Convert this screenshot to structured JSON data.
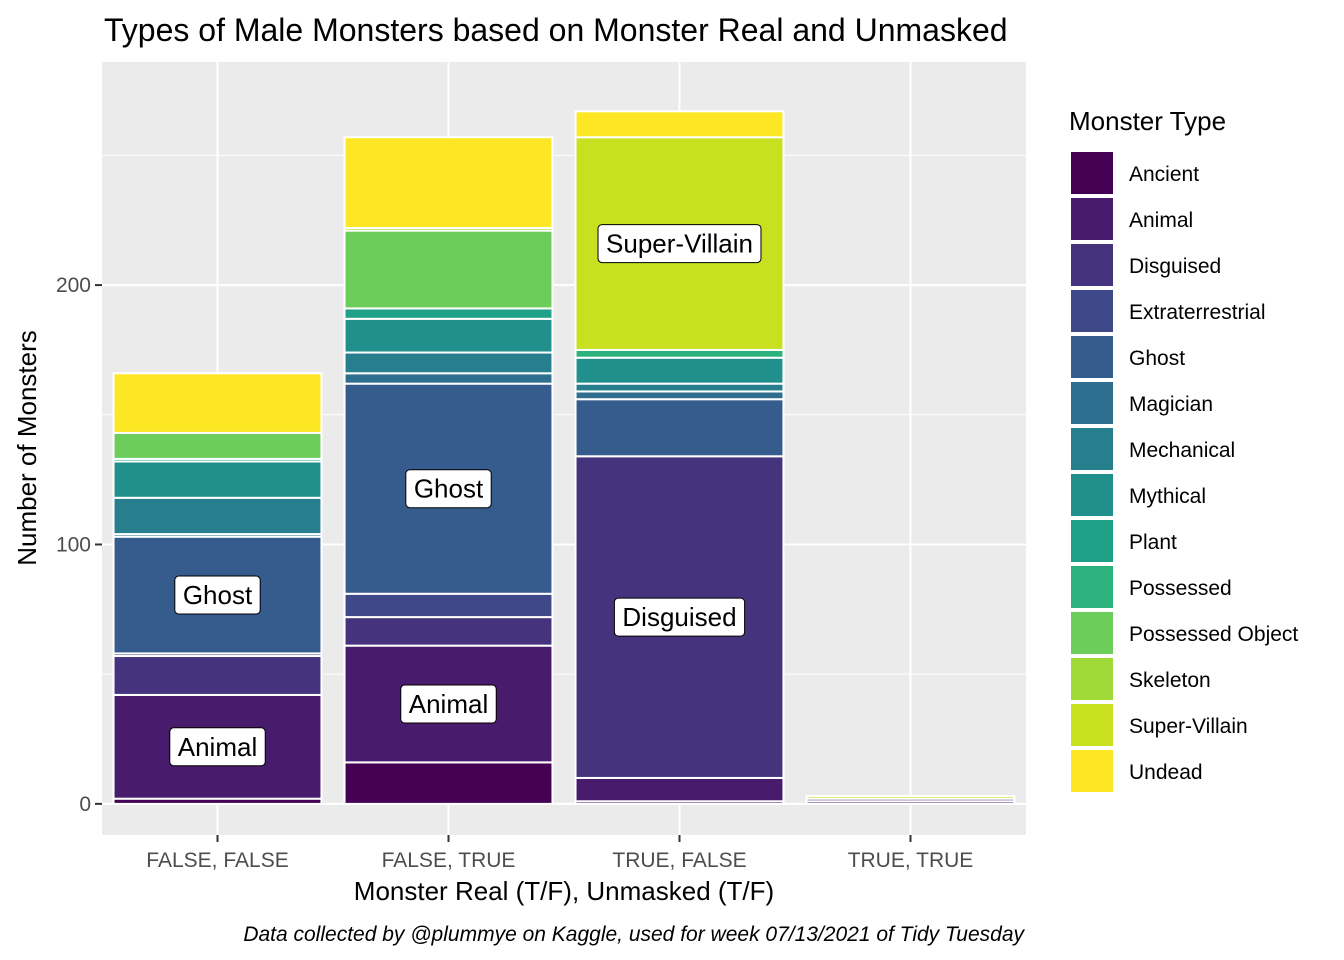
{
  "chart_data": {
    "type": "bar",
    "stacked": true,
    "title": "Types of Male Monsters based on Monster Real and Unmasked",
    "xlabel": "Monster Real (T/F), Unmasked (T/F)",
    "ylabel": "Number of Monsters",
    "caption": "Data collected by @plummye on Kaggle, used for week 07/13/2021 of Tidy Tuesday",
    "legend_title": "Monster Type",
    "legend_position": "right",
    "grid": true,
    "ylim": [
      -12,
      286
    ],
    "yticks": [
      0,
      100,
      200
    ],
    "categories": [
      "FALSE, FALSE",
      "FALSE, TRUE",
      "TRUE, FALSE",
      "TRUE, TRUE"
    ],
    "series": [
      {
        "name": "Ancient",
        "color": "#440154",
        "values": [
          2,
          16,
          1,
          0
        ]
      },
      {
        "name": "Animal",
        "color": "#481B6D",
        "values": [
          40,
          45,
          9,
          1
        ]
      },
      {
        "name": "Disguised",
        "color": "#46337E",
        "values": [
          15,
          11,
          124,
          1
        ]
      },
      {
        "name": "Extraterrestrial",
        "color": "#3F4889",
        "values": [
          1,
          9,
          0,
          0
        ]
      },
      {
        "name": "Ghost",
        "color": "#365C8D",
        "values": [
          45,
          81,
          22,
          0
        ]
      },
      {
        "name": "Magician",
        "color": "#2E6E8E",
        "values": [
          1,
          4,
          3,
          0
        ]
      },
      {
        "name": "Mechanical",
        "color": "#277F8E",
        "values": [
          14,
          8,
          3,
          0
        ]
      },
      {
        "name": "Mythical",
        "color": "#21908C",
        "values": [
          14,
          13,
          10,
          0
        ]
      },
      {
        "name": "Plant",
        "color": "#1FA187",
        "values": [
          1,
          4,
          0,
          0
        ]
      },
      {
        "name": "Possessed",
        "color": "#2DB27D",
        "values": [
          0,
          0,
          3,
          0
        ]
      },
      {
        "name": "Possessed Object",
        "color": "#6CCD5A",
        "values": [
          10,
          30,
          0,
          0
        ]
      },
      {
        "name": "Skeleton",
        "color": "#A0DA39",
        "values": [
          0,
          1,
          0,
          0
        ]
      },
      {
        "name": "Super-Villain",
        "color": "#C8E020",
        "values": [
          0,
          0,
          82,
          1
        ]
      },
      {
        "name": "Undead",
        "color": "#FDE725",
        "values": [
          23,
          35,
          10,
          0
        ]
      }
    ],
    "annotations": [
      {
        "category": "FALSE, FALSE",
        "series": "Animal",
        "text": "Animal"
      },
      {
        "category": "FALSE, FALSE",
        "series": "Ghost",
        "text": "Ghost"
      },
      {
        "category": "FALSE, TRUE",
        "series": "Animal",
        "text": "Animal"
      },
      {
        "category": "FALSE, TRUE",
        "series": "Ghost",
        "text": "Ghost"
      },
      {
        "category": "TRUE, FALSE",
        "series": "Disguised",
        "text": "Disguised"
      },
      {
        "category": "TRUE, FALSE",
        "series": "Super-Villain",
        "text": "Super-Villain"
      }
    ]
  }
}
